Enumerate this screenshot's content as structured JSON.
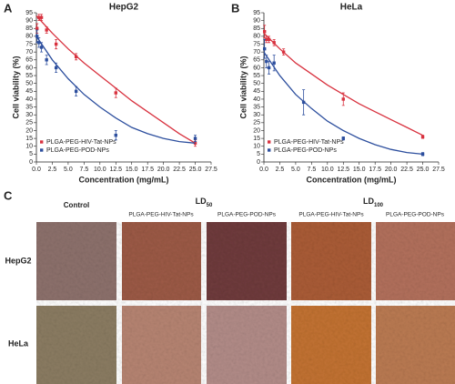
{
  "chart_data": [
    {
      "type": "scatter",
      "panel_label": "A",
      "title": "HepG2",
      "x_label": "Concentration (mg/mL)",
      "y_label": "Cell viability (%)",
      "xlim": [
        0,
        27.5
      ],
      "xticks": [
        {
          "value": 0,
          "label": "0.0"
        },
        2.5,
        {
          "value": 5,
          "label": "5.0"
        },
        7.5,
        {
          "value": 10,
          "label": "10.0"
        },
        12.5,
        {
          "value": 15,
          "label": "15.0"
        },
        17.5,
        {
          "value": 20,
          "label": "20.0"
        },
        22.5,
        {
          "value": 25,
          "label": "25.0"
        },
        27.5
      ],
      "ylim": [
        0,
        95
      ],
      "yticks": [
        0,
        5,
        10,
        15,
        20,
        25,
        30,
        35,
        40,
        45,
        50,
        55,
        60,
        65,
        70,
        75,
        80,
        85,
        90,
        95
      ],
      "legend": "lower left",
      "series": [
        {
          "name": "PLGA-PEG-HIV-Tat-NPs",
          "color": "#d8323f",
          "x": [
            0.1,
            0.4,
            0.8,
            1.6,
            3.1,
            6.25,
            12.5,
            25
          ],
          "values": [
            85,
            92,
            92,
            84,
            75,
            67,
            44,
            12
          ],
          "errors": [
            3,
            2,
            2,
            2,
            3,
            2,
            3,
            2
          ],
          "fit": {
            "x": [
              0,
              2.5,
              5,
              7.5,
              10,
              12.5,
              15,
              17.5,
              20,
              22.5,
              25
            ],
            "values": [
              93,
              82,
              72,
              63,
              55,
              47,
              39,
              32,
              25,
              18,
              12
            ]
          }
        },
        {
          "name": "PLGA-PEG-POD-NPs",
          "color": "#2d4f9e",
          "x": [
            0.1,
            0.4,
            0.8,
            1.6,
            3.1,
            6.25,
            12.5,
            25
          ],
          "values": [
            80,
            76,
            73,
            65,
            60,
            45,
            17,
            15
          ],
          "errors": [
            4,
            3,
            3,
            3,
            3,
            3,
            3,
            2
          ],
          "fit": {
            "x": [
              0,
              2.5,
              5,
              7.5,
              10,
              12.5,
              15,
              17.5,
              20,
              22.5,
              25
            ],
            "values": [
              80,
              65,
              53,
              43,
              35,
              28,
              22,
              18,
              15,
              13,
              12
            ]
          }
        }
      ]
    },
    {
      "type": "scatter",
      "panel_label": "B",
      "title": "HeLa",
      "x_label": "Concentration (mg/mL)",
      "y_label": "Cell viability (%)",
      "xlim": [
        0,
        27.5
      ],
      "xticks": [
        {
          "value": 0,
          "label": "0.0"
        },
        2.5,
        {
          "value": 5,
          "label": "5.0"
        },
        7.5,
        {
          "value": 10,
          "label": "10.0"
        },
        12.5,
        {
          "value": 15,
          "label": "15.0"
        },
        17.5,
        {
          "value": 20,
          "label": "20.0"
        },
        22.5,
        {
          "value": 25,
          "label": "25.0"
        },
        27.5
      ],
      "ylim": [
        0,
        95
      ],
      "yticks": [
        0,
        5,
        10,
        15,
        20,
        25,
        30,
        35,
        40,
        45,
        50,
        55,
        60,
        65,
        70,
        75,
        80,
        85,
        90,
        95
      ],
      "legend": "lower left",
      "series": [
        {
          "name": "PLGA-PEG-HIV-Tat-NPs",
          "color": "#d8323f",
          "x": [
            0.1,
            0.4,
            0.8,
            1.6,
            3.1,
            12.5,
            25
          ],
          "values": [
            83,
            78,
            78,
            76,
            70,
            40,
            16
          ],
          "errors": [
            4,
            2,
            2,
            2,
            2,
            4,
            1
          ],
          "fit": {
            "x": [
              0,
              2.5,
              5,
              7.5,
              10,
              12.5,
              15,
              17.5,
              20,
              22.5,
              25
            ],
            "values": [
              82,
              72,
              63,
              56,
              49,
              43,
              37,
              32,
              27,
              22,
              17
            ]
          }
        },
        {
          "name": "PLGA-PEG-POD-NPs",
          "color": "#2d4f9e",
          "x": [
            0.1,
            0.4,
            0.8,
            1.6,
            6.25,
            12.5,
            25
          ],
          "values": [
            72,
            64,
            60,
            63,
            38,
            15,
            5
          ],
          "errors": [
            6,
            4,
            4,
            5,
            8,
            1,
            1
          ],
          "fit": {
            "x": [
              0,
              2.5,
              5,
              7.5,
              10,
              12.5,
              15,
              17.5,
              20,
              22.5,
              25
            ],
            "values": [
              70,
              55,
              43,
              34,
              26,
              20,
              15,
              11,
              8,
              6,
              5
            ]
          }
        }
      ]
    }
  ],
  "panel_c": {
    "label": "C",
    "control": "Control",
    "ld50": {
      "base": "LD",
      "sub": "50"
    },
    "ld100": {
      "base": "LD",
      "sub": "100"
    },
    "subcolumns": [
      "PLGA-PEG-HIV-Tat-NPs",
      "PLGA-PEG-POD-NPs",
      "PLGA-PEG-HIV-Tat-NPs",
      "PLGA-PEG-POD-NPs"
    ],
    "rows": [
      "HepG2",
      "HeLa"
    ]
  }
}
